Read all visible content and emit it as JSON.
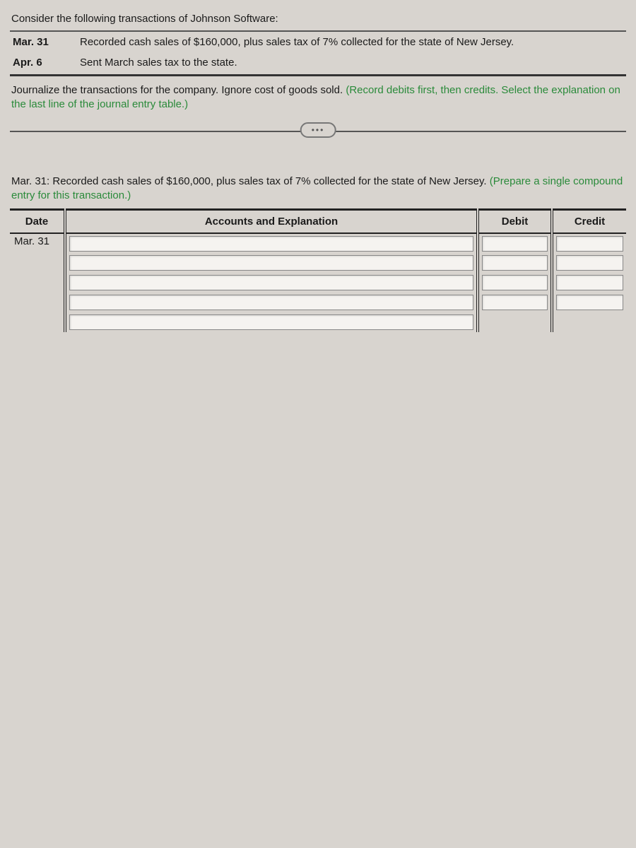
{
  "intro": "Consider the following transactions of Johnson Software:",
  "transactions": [
    {
      "date": "Mar. 31",
      "text": "Recorded cash sales of $160,000, plus sales tax of 7% collected for the state of New Jersey."
    },
    {
      "date": "Apr. 6",
      "text": "Sent March sales tax to the state."
    }
  ],
  "instruction_main": "Journalize the transactions for the company. Ignore cost of goods sold. ",
  "instruction_hint": "(Record debits first, then credits. Select the explanation on the last line of the journal entry table.)",
  "ellipsis": "•••",
  "prompt_main": "Mar. 31: Recorded cash sales of $160,000, plus sales tax of 7% collected for the state of New Jersey. ",
  "prompt_hint": "(Prepare a single compound entry for this transaction.)",
  "journal": {
    "headers": {
      "date": "Date",
      "accounts": "Accounts and Explanation",
      "debit": "Debit",
      "credit": "Credit"
    },
    "rows": [
      {
        "date": "Mar. 31",
        "account": "",
        "debit": "",
        "credit": "",
        "has_account": true,
        "has_amounts": true
      },
      {
        "date": "",
        "account": "",
        "debit": "",
        "credit": "",
        "has_account": true,
        "has_amounts": true
      },
      {
        "date": "",
        "account": "",
        "debit": "",
        "credit": "",
        "has_account": true,
        "has_amounts": true
      },
      {
        "date": "",
        "account": "",
        "debit": "",
        "credit": "",
        "has_account": true,
        "has_amounts": true
      },
      {
        "date": "",
        "account": "",
        "debit": "",
        "credit": "",
        "has_account": true,
        "has_amounts": false
      }
    ]
  },
  "colors": {
    "background": "#d8d4cf",
    "text": "#1a1a1a",
    "hint": "#2a8a3a",
    "border_heavy": "#222",
    "border_light": "#555",
    "input_bg": "#f5f3f0",
    "input_border": "#888"
  }
}
